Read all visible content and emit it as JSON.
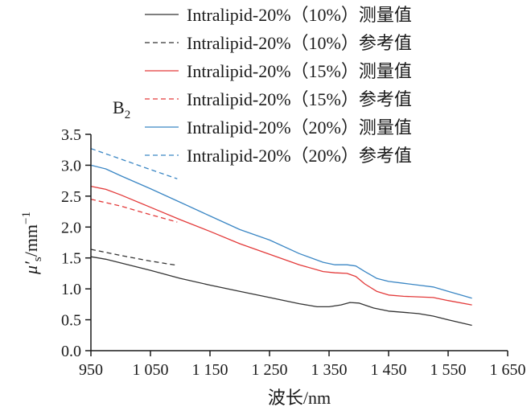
{
  "chart_data": {
    "type": "line",
    "panel_label": "B",
    "panel_label_sub": "2",
    "xlabel": "波长/nm",
    "ylabel_main": "μ",
    "ylabel_prime": "′",
    "ylabel_sub": "s",
    "ylabel_unit": "/mm",
    "ylabel_sup": "−1",
    "xlim": [
      950,
      1650
    ],
    "ylim": [
      0,
      3.5
    ],
    "x_ticks": [
      950,
      1050,
      1150,
      1250,
      1350,
      1450,
      1550,
      1650
    ],
    "x_tick_labels": [
      "950",
      "1 050",
      "1 150",
      "1 250",
      "1 350",
      "1 450",
      "1 550",
      "1 650"
    ],
    "y_ticks": [
      0,
      0.5,
      1.0,
      1.5,
      2.0,
      2.5,
      3.0,
      3.5
    ],
    "y_tick_labels": [
      "0.0",
      "0.5",
      "1.0",
      "1.5",
      "2.0",
      "2.5",
      "3.0",
      "3.5"
    ],
    "grid": false,
    "legend_position": "top",
    "series": [
      {
        "name": "Intralipid-20%（10%）测量值",
        "color": "#333333",
        "dash": "solid",
        "x": [
          950,
          975,
          1000,
          1050,
          1100,
          1150,
          1200,
          1250,
          1300,
          1330,
          1350,
          1370,
          1385,
          1400,
          1425,
          1450,
          1475,
          1500,
          1525,
          1550,
          1590
        ],
        "y": [
          1.52,
          1.48,
          1.42,
          1.3,
          1.17,
          1.06,
          0.96,
          0.86,
          0.76,
          0.71,
          0.71,
          0.74,
          0.78,
          0.77,
          0.69,
          0.64,
          0.62,
          0.6,
          0.56,
          0.5,
          0.41
        ]
      },
      {
        "name": "Intralipid-20%（10%）参考值",
        "color": "#333333",
        "dash": "dashed",
        "x": [
          950,
          1000,
          1050,
          1095
        ],
        "y": [
          1.64,
          1.54,
          1.45,
          1.38
        ]
      },
      {
        "name": "Intralipid-20%（15%）测量值",
        "color": "#e33a3a",
        "dash": "solid",
        "x": [
          950,
          975,
          1000,
          1050,
          1100,
          1150,
          1200,
          1250,
          1300,
          1340,
          1360,
          1380,
          1395,
          1410,
          1430,
          1450,
          1475,
          1500,
          1525,
          1550,
          1590
        ],
        "y": [
          2.66,
          2.61,
          2.52,
          2.32,
          2.12,
          1.93,
          1.73,
          1.56,
          1.39,
          1.28,
          1.26,
          1.25,
          1.2,
          1.08,
          0.96,
          0.9,
          0.88,
          0.87,
          0.86,
          0.81,
          0.74
        ]
      },
      {
        "name": "Intralipid-20%（15%）参考值",
        "color": "#e33a3a",
        "dash": "dashed",
        "x": [
          950,
          1000,
          1050,
          1095
        ],
        "y": [
          2.45,
          2.34,
          2.2,
          2.08
        ]
      },
      {
        "name": "Intralipid-20%（20%）测量值",
        "color": "#3a86c4",
        "dash": "solid",
        "x": [
          950,
          975,
          1000,
          1050,
          1100,
          1150,
          1200,
          1250,
          1300,
          1340,
          1360,
          1380,
          1395,
          1410,
          1430,
          1450,
          1475,
          1500,
          1525,
          1550,
          1590
        ],
        "y": [
          3.0,
          2.94,
          2.83,
          2.62,
          2.4,
          2.18,
          1.96,
          1.79,
          1.57,
          1.43,
          1.39,
          1.39,
          1.37,
          1.28,
          1.17,
          1.12,
          1.09,
          1.06,
          1.03,
          0.96,
          0.85
        ]
      },
      {
        "name": "Intralipid-20%（20%）参考值",
        "color": "#3a86c4",
        "dash": "dashed",
        "x": [
          950,
          1000,
          1050,
          1095
        ],
        "y": [
          3.27,
          3.1,
          2.93,
          2.78
        ]
      }
    ]
  }
}
